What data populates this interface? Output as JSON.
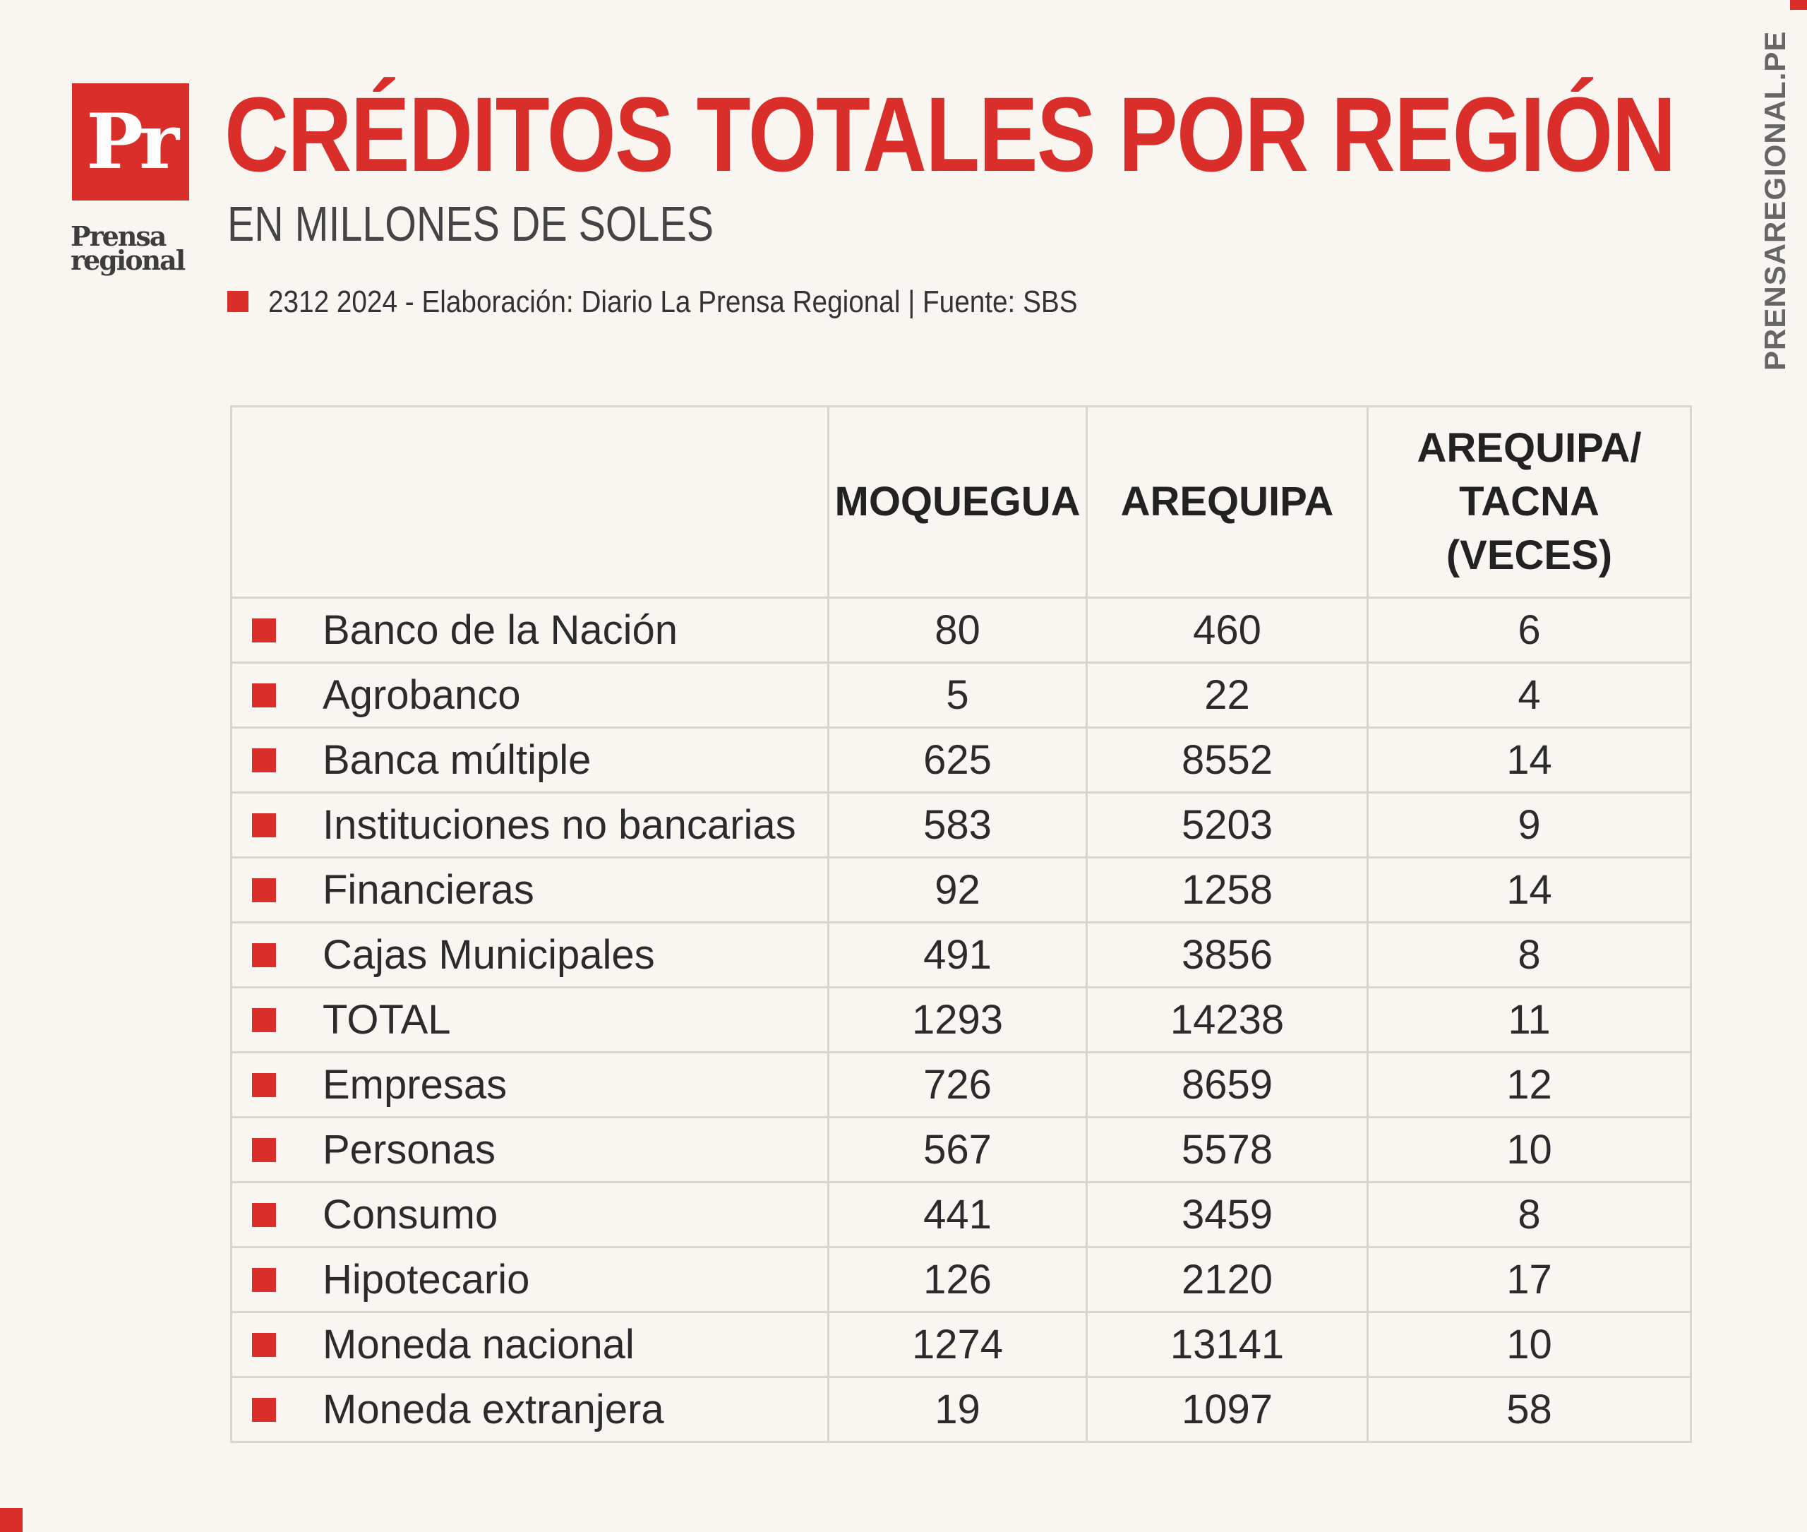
{
  "brand": {
    "logo_mark": "Pr",
    "logo_word_top": "Prensa",
    "logo_word_bottom": "regional",
    "side_url": "PRENSAREGIONAL.PE",
    "accent_color": "#d92e2a"
  },
  "header": {
    "title": "CRÉDITOS TOTALES POR REGIÓN",
    "subtitle": "EN MILLONES DE SOLES",
    "credit": "2312 2024 - Elaboración: Diario La Prensa Regional | Fuente: SBS"
  },
  "table": {
    "columns": [
      "",
      "MOQUEGUA",
      "AREQUIPA",
      "AREQUIPA/ TACNA (VECES)"
    ],
    "rows": [
      {
        "label": "Banco de la Nación",
        "moquegua": "80",
        "arequipa": "460",
        "ratio": "6"
      },
      {
        "label": "Agrobanco",
        "moquegua": "5",
        "arequipa": "22",
        "ratio": "4"
      },
      {
        "label": "Banca múltiple",
        "moquegua": "625",
        "arequipa": "8552",
        "ratio": "14"
      },
      {
        "label": "Instituciones no bancarias",
        "moquegua": "583",
        "arequipa": "5203",
        "ratio": "9"
      },
      {
        "label": "Financieras",
        "moquegua": "92",
        "arequipa": "1258",
        "ratio": "14"
      },
      {
        "label": "Cajas Municipales",
        "moquegua": "491",
        "arequipa": "3856",
        "ratio": "8"
      },
      {
        "label": "TOTAL",
        "moquegua": "1293",
        "arequipa": "14238",
        "ratio": "11"
      },
      {
        "label": "Empresas",
        "moquegua": "726",
        "arequipa": "8659",
        "ratio": "12"
      },
      {
        "label": "Personas",
        "moquegua": "567",
        "arequipa": "5578",
        "ratio": "10"
      },
      {
        "label": "Consumo",
        "moquegua": "441",
        "arequipa": "3459",
        "ratio": "8"
      },
      {
        "label": "Hipotecario",
        "moquegua": "126",
        "arequipa": "2120",
        "ratio": "17"
      },
      {
        "label": "Moneda nacional",
        "moquegua": "1274",
        "arequipa": "13141",
        "ratio": "10"
      },
      {
        "label": "Moneda extranjera",
        "moquegua": "19",
        "arequipa": "1097",
        "ratio": "58"
      }
    ]
  }
}
